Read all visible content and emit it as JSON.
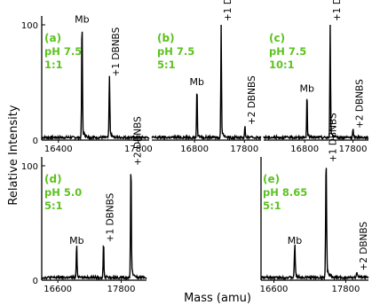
{
  "figure": {
    "ylabel": "Relative Intensity",
    "xlabel": "Mass (amu)",
    "peak_labels": {
      "mb": "Mb",
      "plus1": "+1 DBNBS",
      "plus2": "+2 DBNBS"
    },
    "colors": {
      "annotation": "#5cc21f",
      "trace": "#000000"
    }
  },
  "chart_data": [
    {
      "type": "line",
      "panel": "(a)",
      "condition": [
        "pH 7.5",
        "1:1"
      ],
      "xlim": [
        16200,
        18200
      ],
      "ylim": [
        0,
        100
      ],
      "x_ticks": [
        "16400",
        "17800"
      ],
      "y_ticks": [
        "0",
        "100"
      ],
      "peaks": [
        {
          "label": "Mb",
          "x": 16950,
          "y": 98
        },
        {
          "label": "+1 DBNBS",
          "x": 17460,
          "y": 52
        }
      ]
    },
    {
      "type": "line",
      "panel": "(b)",
      "condition": [
        "pH 7.5",
        "5:1"
      ],
      "xlim": [
        16000,
        18300
      ],
      "ylim": [
        0,
        100
      ],
      "x_ticks": [
        "16800",
        "17800"
      ],
      "peaks": [
        {
          "label": "Mb",
          "x": 16950,
          "y": 44
        },
        {
          "label": "+1 DBNBS",
          "x": 17460,
          "y": 100
        },
        {
          "label": "+2 DBNBS",
          "x": 17960,
          "y": 10
        }
      ]
    },
    {
      "type": "line",
      "panel": "(c)",
      "condition": [
        "pH 7.5",
        "10:1"
      ],
      "xlim": [
        16000,
        18300
      ],
      "ylim": [
        0,
        100
      ],
      "x_ticks": [
        "16800",
        "17800"
      ],
      "peaks": [
        {
          "label": "Mb",
          "x": 16950,
          "y": 38
        },
        {
          "label": "+1 DBNBS",
          "x": 17460,
          "y": 100
        },
        {
          "label": "+2 DBNBS",
          "x": 17960,
          "y": 7
        }
      ]
    },
    {
      "type": "line",
      "panel": "(d)",
      "condition": [
        "pH 5.0",
        "5:1"
      ],
      "xlim": [
        16300,
        18250
      ],
      "ylim": [
        0,
        100
      ],
      "x_ticks": [
        "16600",
        "17800"
      ],
      "y_ticks": [
        "0",
        "100"
      ],
      "peaks": [
        {
          "label": "Mb",
          "x": 16950,
          "y": 28
        },
        {
          "label": "+1 DBNBS",
          "x": 17450,
          "y": 30
        },
        {
          "label": "+2 DBNBS",
          "x": 17960,
          "y": 97
        }
      ]
    },
    {
      "type": "line",
      "panel": "(e)",
      "condition": [
        "pH 8.65",
        "5:1"
      ],
      "xlim": [
        16400,
        18150
      ],
      "ylim": [
        0,
        100
      ],
      "x_ticks": [
        "16600",
        "17800"
      ],
      "peaks": [
        {
          "label": "Mb",
          "x": 16950,
          "y": 28
        },
        {
          "label": "+1 DBNBS",
          "x": 17460,
          "y": 100
        },
        {
          "label": "+2 DBNBS",
          "x": 17960,
          "y": 5
        }
      ]
    }
  ]
}
